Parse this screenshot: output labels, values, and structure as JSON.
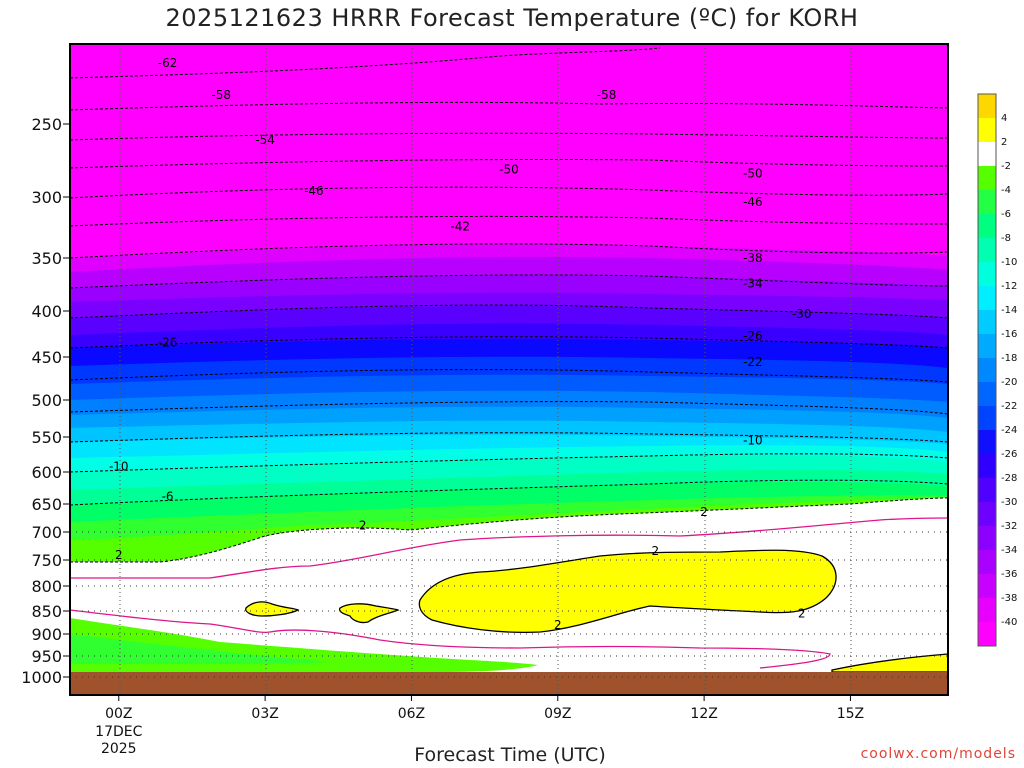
{
  "chart_data": {
    "type": "heatmap",
    "title": "2025121623 HRRR Forecast Temperature (ºC) for KORH",
    "xlabel": "Forecast Time (UTC)",
    "ylabel": "",
    "credit": "coolwx.com/models",
    "x_ticks": [
      "00Z",
      "03Z",
      "06Z",
      "09Z",
      "12Z",
      "15Z"
    ],
    "x_date": [
      "17DEC",
      "2025"
    ],
    "x_range_hours": [
      -1,
      17
    ],
    "y_ticks": [
      250,
      300,
      350,
      400,
      450,
      500,
      550,
      600,
      650,
      700,
      750,
      800,
      850,
      900,
      950,
      1000
    ],
    "y_range_hpa": [
      200,
      1030
    ],
    "grid": true,
    "colorbar": {
      "levels": [
        -40,
        -38,
        -36,
        -34,
        -32,
        -30,
        -28,
        -26,
        -24,
        -22,
        -20,
        -18,
        -16,
        -14,
        -12,
        -10,
        -8,
        -6,
        -4,
        -2,
        2,
        4
      ],
      "colors": [
        "#ff00ff",
        "#e800ff",
        "#c800ff",
        "#aa00ff",
        "#8c00ff",
        "#6e00ff",
        "#5000ff",
        "#3000ff",
        "#1010ff",
        "#0044ff",
        "#0066ff",
        "#0088ff",
        "#00aaff",
        "#00ccff",
        "#00eeff",
        "#00ffdd",
        "#00ffb0",
        "#00ff80",
        "#22ff44",
        "#55ff00",
        "#ffffff",
        "#ffff00",
        "#ffd700"
      ]
    },
    "contour_labels": [
      {
        "t": 1.0,
        "p": 212,
        "v": "-62"
      },
      {
        "t": 2.1,
        "p": 232,
        "v": "-58"
      },
      {
        "t": 10.0,
        "p": 232,
        "v": "-58"
      },
      {
        "t": 3.0,
        "p": 261,
        "v": "-54"
      },
      {
        "t": 8.0,
        "p": 281,
        "v": "-50"
      },
      {
        "t": 13.0,
        "p": 284,
        "v": "-50"
      },
      {
        "t": 4.0,
        "p": 296,
        "v": "-46"
      },
      {
        "t": 13.0,
        "p": 304,
        "v": "-46"
      },
      {
        "t": 7.0,
        "p": 324,
        "v": "-42"
      },
      {
        "t": 13.0,
        "p": 350,
        "v": "-38"
      },
      {
        "t": 13.0,
        "p": 374,
        "v": "-34"
      },
      {
        "t": 14.0,
        "p": 403,
        "v": "-30"
      },
      {
        "t": 13.0,
        "p": 427,
        "v": "-26"
      },
      {
        "t": 1.0,
        "p": 434,
        "v": "-26"
      },
      {
        "t": 13.0,
        "p": 456,
        "v": "-22"
      },
      {
        "t": 13.0,
        "p": 555,
        "v": "-10"
      },
      {
        "t": 0.0,
        "p": 592,
        "v": "-10"
      },
      {
        "t": 1.0,
        "p": 638,
        "v": "-6"
      },
      {
        "t": 5.0,
        "p": 688,
        "v": "2"
      },
      {
        "t": 12.0,
        "p": 664,
        "v": "2"
      },
      {
        "t": 0.0,
        "p": 741,
        "v": "2"
      },
      {
        "t": 11.0,
        "p": 734,
        "v": "2"
      },
      {
        "t": 9.0,
        "p": 880,
        "v": "2"
      },
      {
        "t": 14.0,
        "p": 855,
        "v": "2"
      }
    ],
    "surface_color": "#a0522d"
  }
}
